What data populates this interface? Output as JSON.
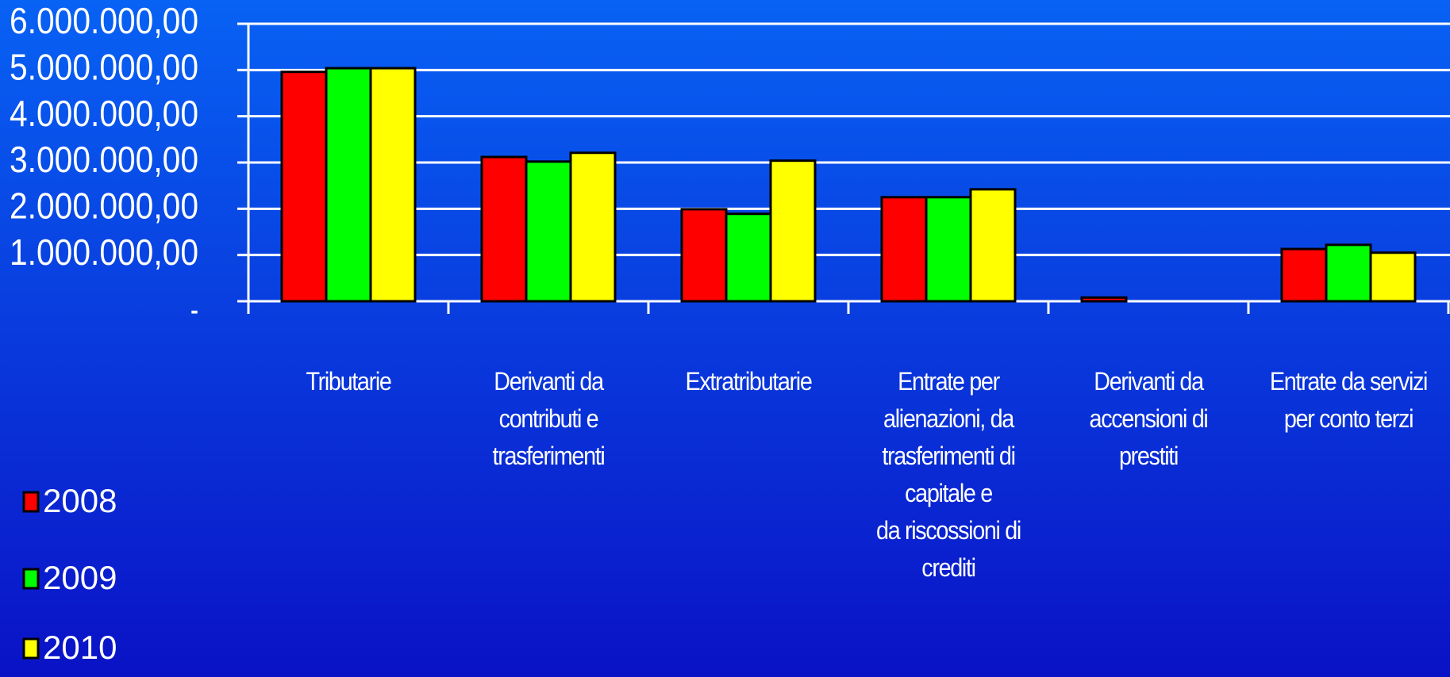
{
  "chart_data": {
    "type": "bar",
    "categories": [
      "Tributarie",
      "Derivanti da\ncontributi e\ntrasferimenti",
      "Extratributarie",
      "Entrate per\nalienazioni, da\ntrasferimenti di\ncapitale e\nda riscossioni di\ncrediti",
      "Derivanti da\naccensioni di\nprestiti",
      "Entrate da servizi\nper conto terzi"
    ],
    "series": [
      {
        "name": "2008",
        "color": "#ff0000",
        "values": [
          4960000,
          3120000,
          1990000,
          2250000,
          80000,
          1130000
        ]
      },
      {
        "name": "2009",
        "color": "#00ff00",
        "values": [
          5040000,
          3020000,
          1890000,
          2250000,
          0,
          1220000
        ]
      },
      {
        "name": "2010",
        "color": "#ffff00",
        "values": [
          5040000,
          3210000,
          3040000,
          2420000,
          0,
          1050000
        ]
      }
    ],
    "ylim": [
      0,
      6000000
    ],
    "yticks": [
      {
        "value": 0,
        "label": "-"
      },
      {
        "value": 1000000,
        "label": "1.000.000,00"
      },
      {
        "value": 2000000,
        "label": "2.000.000,00"
      },
      {
        "value": 3000000,
        "label": "3.000.000,00"
      },
      {
        "value": 4000000,
        "label": "4.000.000,00"
      },
      {
        "value": 5000000,
        "label": "5.000.000,00"
      },
      {
        "value": 6000000,
        "label": "6.000.000,00"
      }
    ],
    "grid": true,
    "legend": "left"
  }
}
